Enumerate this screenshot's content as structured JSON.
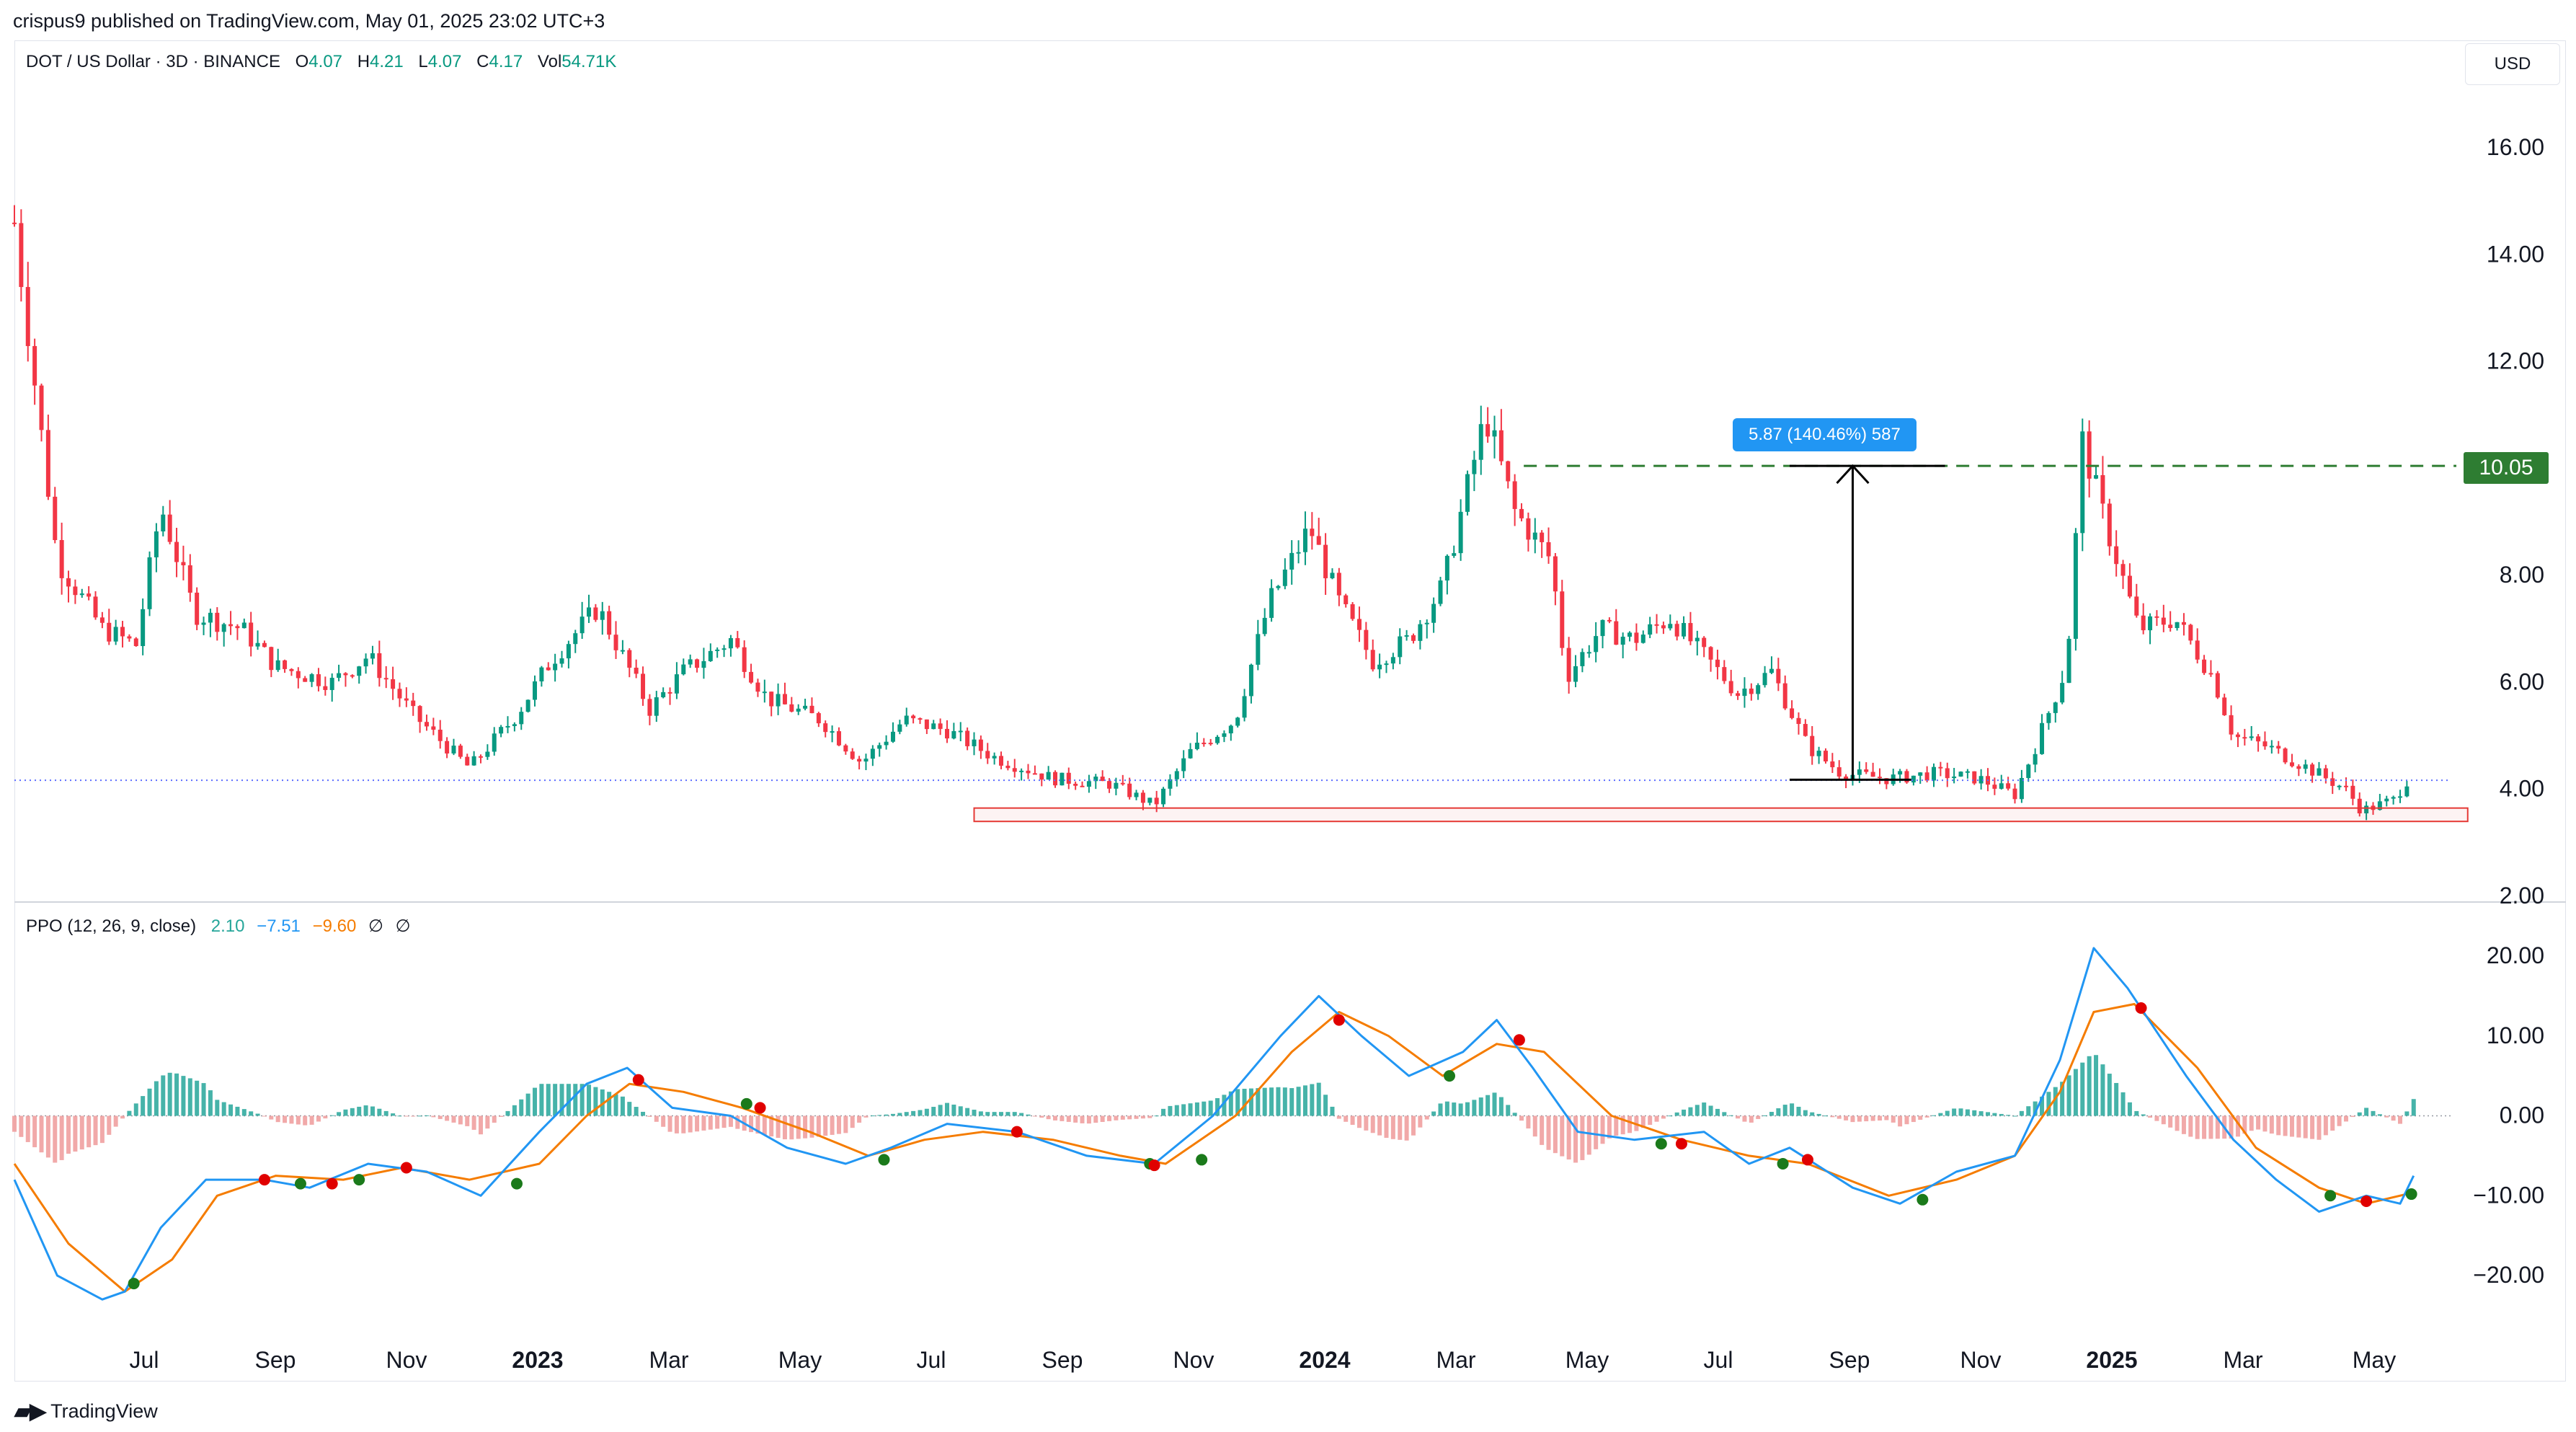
{
  "header": {
    "publisher_line": "crispus9 published on TradingView.com, May 01, 2025 23:02 UTC+3"
  },
  "legend": {
    "symbol": "DOT / US Dollar · 3D · BINANCE",
    "open_label": "O",
    "open": "4.07",
    "high_label": "H",
    "high": "4.21",
    "low_label": "L",
    "low": "4.07",
    "close_label": "C",
    "close": "4.17",
    "vol_label": "Vol",
    "vol": "54.71K"
  },
  "currency_button": "USD",
  "price_tag": "10.05",
  "measure_label": "5.87 (140.46%) 587",
  "footer": {
    "brand": "TradingView",
    "logo_icon": "tradingview-logo-icon"
  },
  "ppo_legend": {
    "name": "PPO (12, 26, 9, close)",
    "hist": "2.10",
    "ppo": "−7.51",
    "signal": "−9.60",
    "icons": [
      "∅",
      "∅"
    ]
  },
  "colors": {
    "up": "#089981",
    "down": "#f23645",
    "ppo_line": "#2196f3",
    "signal_line": "#f57c00",
    "hist_pos": "#26a69a",
    "hist_neg": "#ef9a9a",
    "target_line": "#2e7d32",
    "support_box": "#e53935"
  },
  "chart_data": [
    {
      "type": "candlestick",
      "title": "DOT / US Dollar · 3D · BINANCE",
      "y_axis_ticks": [
        "16.00",
        "14.00",
        "12.00",
        "10.00",
        "8.00",
        "6.00",
        "4.00",
        "2.00"
      ],
      "ylim": [
        2.0,
        17.0
      ],
      "x_axis_ticks": [
        "Jul",
        "Sep",
        "Nov",
        "2023",
        "Mar",
        "May",
        "Jul",
        "Sep",
        "Nov",
        "2024",
        "Mar",
        "May",
        "Jul",
        "Sep",
        "Nov",
        "2025",
        "Mar",
        "May"
      ],
      "bold_ticks": [
        "2023",
        "2024",
        "2025"
      ],
      "x_range": [
        "2022-06",
        "2025-05"
      ],
      "last_price": 4.17,
      "target_level": 10.05,
      "support_zone": [
        3.4,
        3.65
      ],
      "measure": {
        "from": 4.18,
        "to": 10.05,
        "label": "5.87 (140.46%) 587"
      },
      "price_path": [
        [
          "2022-06-01",
          14.6
        ],
        [
          "2022-06-20",
          8.3
        ],
        [
          "2022-07-10",
          7.0
        ],
        [
          "2022-07-25",
          6.7
        ],
        [
          "2022-08-05",
          9.3
        ],
        [
          "2022-08-20",
          7.3
        ],
        [
          "2022-09-10",
          7.0
        ],
        [
          "2022-09-25",
          6.3
        ],
        [
          "2022-10-20",
          6.0
        ],
        [
          "2022-11-05",
          6.5
        ],
        [
          "2022-11-25",
          5.4
        ],
        [
          "2022-12-20",
          4.4
        ],
        [
          "2023-01-10",
          5.4
        ],
        [
          "2023-01-25",
          6.4
        ],
        [
          "2023-02-15",
          7.4
        ],
        [
          "2023-03-10",
          5.5
        ],
        [
          "2023-03-25",
          6.2
        ],
        [
          "2023-04-15",
          6.8
        ],
        [
          "2023-05-01",
          5.7
        ],
        [
          "2023-05-25",
          5.3
        ],
        [
          "2023-06-12",
          4.5
        ],
        [
          "2023-07-01",
          5.3
        ],
        [
          "2023-07-20",
          5.1
        ],
        [
          "2023-08-10",
          4.6
        ],
        [
          "2023-09-05",
          4.2
        ],
        [
          "2023-10-01",
          4.1
        ],
        [
          "2023-10-20",
          3.7
        ],
        [
          "2023-11-05",
          4.7
        ],
        [
          "2023-11-25",
          5.3
        ],
        [
          "2023-12-10",
          7.5
        ],
        [
          "2023-12-28",
          8.9
        ],
        [
          "2024-01-10",
          7.5
        ],
        [
          "2024-01-25",
          6.4
        ],
        [
          "2024-02-10",
          6.8
        ],
        [
          "2024-02-25",
          7.8
        ],
        [
          "2024-03-15",
          11.0
        ],
        [
          "2024-03-28",
          9.2
        ],
        [
          "2024-04-13",
          8.3
        ],
        [
          "2024-04-20",
          6.1
        ],
        [
          "2024-05-05",
          7.0
        ],
        [
          "2024-05-20",
          6.8
        ],
        [
          "2024-06-05",
          7.2
        ],
        [
          "2024-06-20",
          6.5
        ],
        [
          "2024-07-05",
          5.8
        ],
        [
          "2024-07-20",
          6.2
        ],
        [
          "2024-08-05",
          4.8
        ],
        [
          "2024-08-20",
          4.3
        ],
        [
          "2024-09-10",
          4.2
        ],
        [
          "2024-10-01",
          4.3
        ],
        [
          "2024-10-20",
          4.2
        ],
        [
          "2024-11-05",
          3.9
        ],
        [
          "2024-11-15",
          4.9
        ],
        [
          "2024-11-28",
          6.3
        ],
        [
          "2024-12-05",
          10.5
        ],
        [
          "2024-12-15",
          9.0
        ],
        [
          "2024-12-30",
          7.0
        ],
        [
          "2025-01-15",
          7.2
        ],
        [
          "2025-02-01",
          6.1
        ],
        [
          "2025-02-10",
          5.0
        ],
        [
          "2025-02-25",
          4.8
        ],
        [
          "2025-03-15",
          4.4
        ],
        [
          "2025-04-01",
          4.0
        ],
        [
          "2025-04-08",
          3.6
        ],
        [
          "2025-04-22",
          3.8
        ],
        [
          "2025-04-28",
          4.17
        ]
      ]
    },
    {
      "type": "line",
      "title": "PPO (12, 26, 9, close)",
      "y_axis_ticks": [
        "20.00",
        "10.00",
        "0.00",
        "−10.00",
        "−20.00"
      ],
      "ylim": [
        -25,
        23
      ],
      "series": [
        {
          "name": "PPO",
          "points": [
            [
              "2022-06-01",
              -8
            ],
            [
              "2022-06-20",
              -20
            ],
            [
              "2022-07-10",
              -23
            ],
            [
              "2022-07-20",
              -22
            ],
            [
              "2022-08-05",
              -14
            ],
            [
              "2022-08-25",
              -8
            ],
            [
              "2022-09-20",
              -8
            ],
            [
              "2022-10-10",
              -9
            ],
            [
              "2022-11-05",
              -6
            ],
            [
              "2022-12-01",
              -7
            ],
            [
              "2022-12-25",
              -10
            ],
            [
              "2023-01-20",
              -2
            ],
            [
              "2023-02-10",
              4
            ],
            [
              "2023-02-28",
              6
            ],
            [
              "2023-03-20",
              1
            ],
            [
              "2023-04-15",
              0
            ],
            [
              "2023-05-10",
              -4
            ],
            [
              "2023-06-05",
              -6
            ],
            [
              "2023-06-25",
              -4
            ],
            [
              "2023-07-20",
              -1
            ],
            [
              "2023-08-20",
              -2
            ],
            [
              "2023-09-20",
              -5
            ],
            [
              "2023-10-20",
              -6
            ],
            [
              "2023-11-15",
              0
            ],
            [
              "2023-12-15",
              10
            ],
            [
              "2024-01-01",
              15
            ],
            [
              "2024-01-20",
              10
            ],
            [
              "2024-02-10",
              5
            ],
            [
              "2024-03-05",
              8
            ],
            [
              "2024-03-20",
              12
            ],
            [
              "2024-04-05",
              6
            ],
            [
              "2024-04-25",
              -2
            ],
            [
              "2024-05-20",
              -3
            ],
            [
              "2024-06-20",
              -2
            ],
            [
              "2024-07-10",
              -6
            ],
            [
              "2024-07-28",
              -4
            ],
            [
              "2024-08-25",
              -9
            ],
            [
              "2024-09-15",
              -11
            ],
            [
              "2024-10-10",
              -7
            ],
            [
              "2024-11-05",
              -5
            ],
            [
              "2024-11-25",
              7
            ],
            [
              "2024-12-10",
              21
            ],
            [
              "2024-12-25",
              16
            ],
            [
              "2025-01-20",
              5
            ],
            [
              "2025-02-10",
              -3
            ],
            [
              "2025-03-01",
              -8
            ],
            [
              "2025-03-20",
              -12
            ],
            [
              "2025-04-10",
              -10
            ],
            [
              "2025-04-25",
              -11
            ],
            [
              "2025-05-01",
              -7.5
            ]
          ]
        },
        {
          "name": "Signal",
          "points": [
            [
              "2022-06-01",
              -6
            ],
            [
              "2022-06-25",
              -16
            ],
            [
              "2022-07-20",
              -22
            ],
            [
              "2022-08-10",
              -18
            ],
            [
              "2022-08-30",
              -10
            ],
            [
              "2022-09-25",
              -7.5
            ],
            [
              "2022-10-25",
              -8
            ],
            [
              "2022-11-20",
              -6.5
            ],
            [
              "2022-12-20",
              -8
            ],
            [
              "2023-01-20",
              -6
            ],
            [
              "2023-02-10",
              0
            ],
            [
              "2023-03-01",
              4
            ],
            [
              "2023-03-25",
              3
            ],
            [
              "2023-04-20",
              1
            ],
            [
              "2023-05-20",
              -2
            ],
            [
              "2023-06-15",
              -5
            ],
            [
              "2023-07-10",
              -3
            ],
            [
              "2023-08-05",
              -2
            ],
            [
              "2023-09-05",
              -3
            ],
            [
              "2023-10-05",
              -5
            ],
            [
              "2023-10-25",
              -6
            ],
            [
              "2023-11-25",
              0
            ],
            [
              "2023-12-20",
              8
            ],
            [
              "2024-01-10",
              13
            ],
            [
              "2024-02-01",
              10
            ],
            [
              "2024-02-25",
              5
            ],
            [
              "2024-03-20",
              9
            ],
            [
              "2024-04-10",
              8
            ],
            [
              "2024-05-10",
              0
            ],
            [
              "2024-06-10",
              -3
            ],
            [
              "2024-07-10",
              -5
            ],
            [
              "2024-08-05",
              -6
            ],
            [
              "2024-09-10",
              -10
            ],
            [
              "2024-10-10",
              -8
            ],
            [
              "2024-11-05",
              -5
            ],
            [
              "2024-11-25",
              3
            ],
            [
              "2024-12-10",
              13
            ],
            [
              "2024-12-28",
              14
            ],
            [
              "2025-01-25",
              6
            ],
            [
              "2025-02-20",
              -4
            ],
            [
              "2025-03-20",
              -9
            ],
            [
              "2025-04-10",
              -11
            ],
            [
              "2025-05-01",
              -9.6
            ]
          ]
        }
      ],
      "histogram_note": "histogram equals PPO minus Signal",
      "cross_markers": [
        [
          "2022-07-24",
          -21,
          "up"
        ],
        [
          "2022-09-20",
          -8,
          "down"
        ],
        [
          "2022-10-06",
          -8.5,
          "up"
        ],
        [
          "2022-10-20",
          -8.5,
          "down"
        ],
        [
          "2022-11-01",
          -8,
          "up"
        ],
        [
          "2022-11-22",
          -6.5,
          "down"
        ],
        [
          "2023-01-10",
          -8.5,
          "up"
        ],
        [
          "2023-03-05",
          4.5,
          "down"
        ],
        [
          "2023-04-22",
          1.5,
          "up"
        ],
        [
          "2023-04-28",
          1,
          "down"
        ],
        [
          "2023-06-22",
          -5.5,
          "up"
        ],
        [
          "2023-08-20",
          -2,
          "down"
        ],
        [
          "2023-10-18",
          -6,
          "up"
        ],
        [
          "2023-10-20",
          -6.2,
          "down"
        ],
        [
          "2023-11-10",
          -5.5,
          "up"
        ],
        [
          "2024-01-10",
          12,
          "down"
        ],
        [
          "2024-02-28",
          5,
          "up"
        ],
        [
          "2024-03-30",
          9.5,
          "down"
        ],
        [
          "2024-06-01",
          -3.5,
          "up"
        ],
        [
          "2024-06-10",
          -3.5,
          "down"
        ],
        [
          "2024-07-25",
          -6,
          "up"
        ],
        [
          "2024-08-05",
          -5.5,
          "down"
        ],
        [
          "2024-09-25",
          -10.5,
          "up"
        ],
        [
          "2024-12-31",
          13.5,
          "down"
        ],
        [
          "2025-03-25",
          -10,
          "up"
        ],
        [
          "2025-04-10",
          -10.7,
          "down"
        ],
        [
          "2025-04-30",
          -9.8,
          "up"
        ]
      ]
    }
  ]
}
